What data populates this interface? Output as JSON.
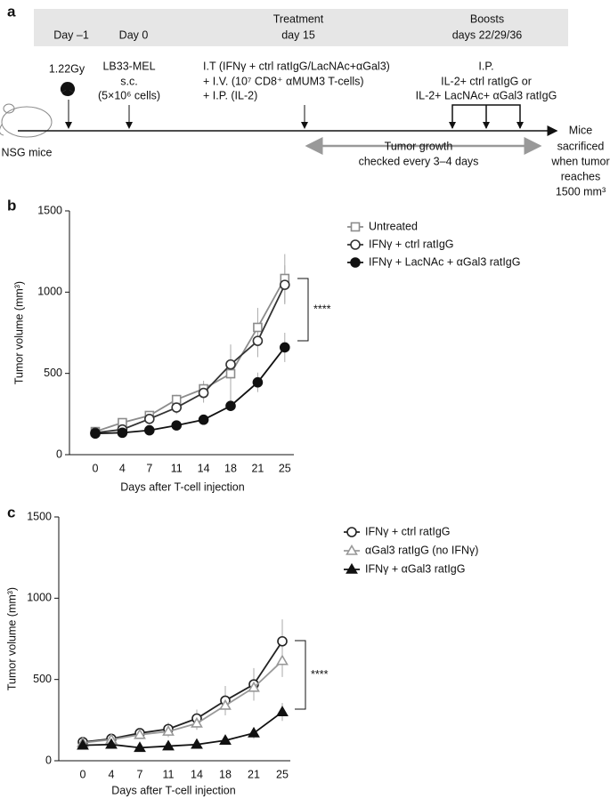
{
  "timeline": {
    "panel": "a",
    "band": {
      "day_minus1": "Day –1",
      "day0": "Day 0",
      "treatment": "Treatment",
      "treatment_day": "day 15",
      "boosts": "Boosts",
      "boost_days": "days 22/29/36"
    },
    "irradiation": "1.22Gy",
    "mice": "NSG mice",
    "tumor": [
      "LB33-MEL",
      "s.c.",
      "(5×10⁶ cells)"
    ],
    "treatment": [
      "I.T (IFNγ + ctrl ratIgG/LacNAc+αGal3)",
      "+ I.V. (10⁷ CD8⁺ αMUM3 T-cells)",
      "+ I.P. (IL-2)"
    ],
    "boost": [
      "I.P.",
      "IL-2+ ctrl ratIgG or",
      "IL-2+ LacNAc+ αGal3 ratIgG"
    ],
    "growth": [
      "Tumor growth",
      "checked every 3–4 days"
    ],
    "end": [
      "Mice",
      "sacrificed",
      "when tumor",
      "reaches",
      "1500 mm³"
    ]
  },
  "chart_data": [
    {
      "type": "line",
      "panel": "b",
      "x_label": "Days after T-cell injection",
      "y_label": "Tumor volume (mm³)",
      "categories": [
        "0",
        "4",
        "7",
        "11",
        "14",
        "18",
        "21",
        "25"
      ],
      "ylim": [
        0,
        1500
      ],
      "yticks": [
        0,
        500,
        1000,
        1500
      ],
      "annotation": "****",
      "series": [
        {
          "name": "Untreated",
          "color": "#8c8c8c",
          "marker": "square",
          "filled": false,
          "values": [
            142,
            197,
            241,
            339,
            405,
            498,
            783,
            1084
          ],
          "errors": [
            15,
            20,
            25,
            30,
            50,
            180,
            120,
            150
          ]
        },
        {
          "name": "IFNγ + ctrl ratIgG",
          "color": "#333333",
          "marker": "circle",
          "filled": false,
          "values": [
            135,
            155,
            220,
            290,
            380,
            555,
            700,
            1045
          ],
          "errors": [
            10,
            15,
            20,
            40,
            60,
            80,
            100,
            120
          ]
        },
        {
          "name": "IFNγ + LacNAc + αGal3 ratIgG",
          "color": "#111111",
          "marker": "circle",
          "filled": true,
          "values": [
            130,
            135,
            150,
            180,
            215,
            300,
            445,
            660
          ],
          "errors": [
            10,
            10,
            12,
            15,
            25,
            30,
            60,
            90
          ]
        }
      ]
    },
    {
      "type": "line",
      "panel": "c",
      "x_label": "Days after T-cell injection",
      "y_label": "Tumor volume (mm³)",
      "categories": [
        "0",
        "4",
        "7",
        "11",
        "14",
        "18",
        "21",
        "25"
      ],
      "ylim": [
        0,
        1500
      ],
      "yticks": [
        0,
        500,
        1000,
        1500
      ],
      "annotation": "****",
      "series": [
        {
          "name": "IFNγ + ctrl ratIgG",
          "color": "#222222",
          "marker": "circle",
          "filled": false,
          "values": [
            115,
            135,
            170,
            195,
            260,
            370,
            470,
            735
          ],
          "errors": [
            15,
            15,
            25,
            40,
            55,
            90,
            100,
            135
          ]
        },
        {
          "name": "αGal3 ratIgG (no IFNγ)",
          "color": "#999999",
          "marker": "triangle",
          "filled": false,
          "values": [
            110,
            130,
            160,
            180,
            230,
            340,
            450,
            615
          ],
          "errors": [
            10,
            15,
            25,
            35,
            40,
            60,
            80,
            100
          ]
        },
        {
          "name": "IFNγ + αGal3 ratIgG",
          "color": "#111111",
          "marker": "triangle",
          "filled": true,
          "values": [
            95,
            100,
            80,
            90,
            100,
            125,
            170,
            300
          ],
          "errors": [
            10,
            10,
            10,
            10,
            12,
            20,
            35,
            55
          ]
        }
      ]
    }
  ]
}
